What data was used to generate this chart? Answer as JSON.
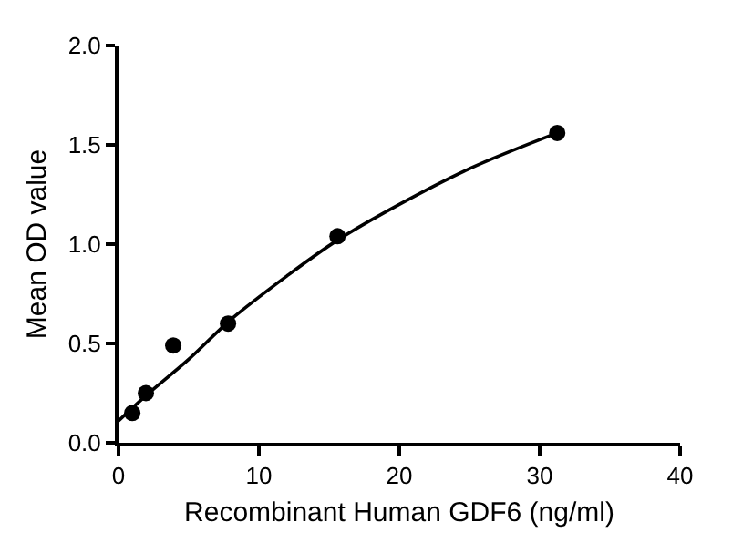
{
  "chart_data": {
    "type": "scatter",
    "xlabel": "Recombinant Human GDF6 (ng/ml)",
    "ylabel": "Mean OD value",
    "xlim": [
      0,
      40
    ],
    "xticks": [
      0,
      10,
      20,
      30,
      40
    ],
    "ylim": [
      0,
      2
    ],
    "yticks": [
      {
        "value": 0,
        "label": "0.0"
      },
      {
        "value": 0.5,
        "label": "0.5"
      },
      {
        "value": 1,
        "label": "1.0"
      },
      {
        "value": 1.5,
        "label": "1.5"
      },
      {
        "value": 2,
        "label": "2.0"
      }
    ],
    "grid": false,
    "series": [
      {
        "marker": "circle",
        "color": "#000000",
        "x": [
          0.98,
          1.95,
          3.9,
          7.8,
          15.6,
          31.25
        ],
        "values": [
          0.15,
          0.25,
          0.49,
          0.6,
          1.04,
          1.56
        ]
      },
      {
        "type": "line",
        "marker": "none",
        "line_style": "solid",
        "color": "#000000",
        "x": [
          0,
          2,
          5,
          8,
          12,
          15.6,
          20,
          25,
          31.25
        ],
        "values": [
          0.11,
          0.24,
          0.42,
          0.62,
          0.84,
          1.02,
          1.2,
          1.38,
          1.56
        ]
      }
    ]
  }
}
